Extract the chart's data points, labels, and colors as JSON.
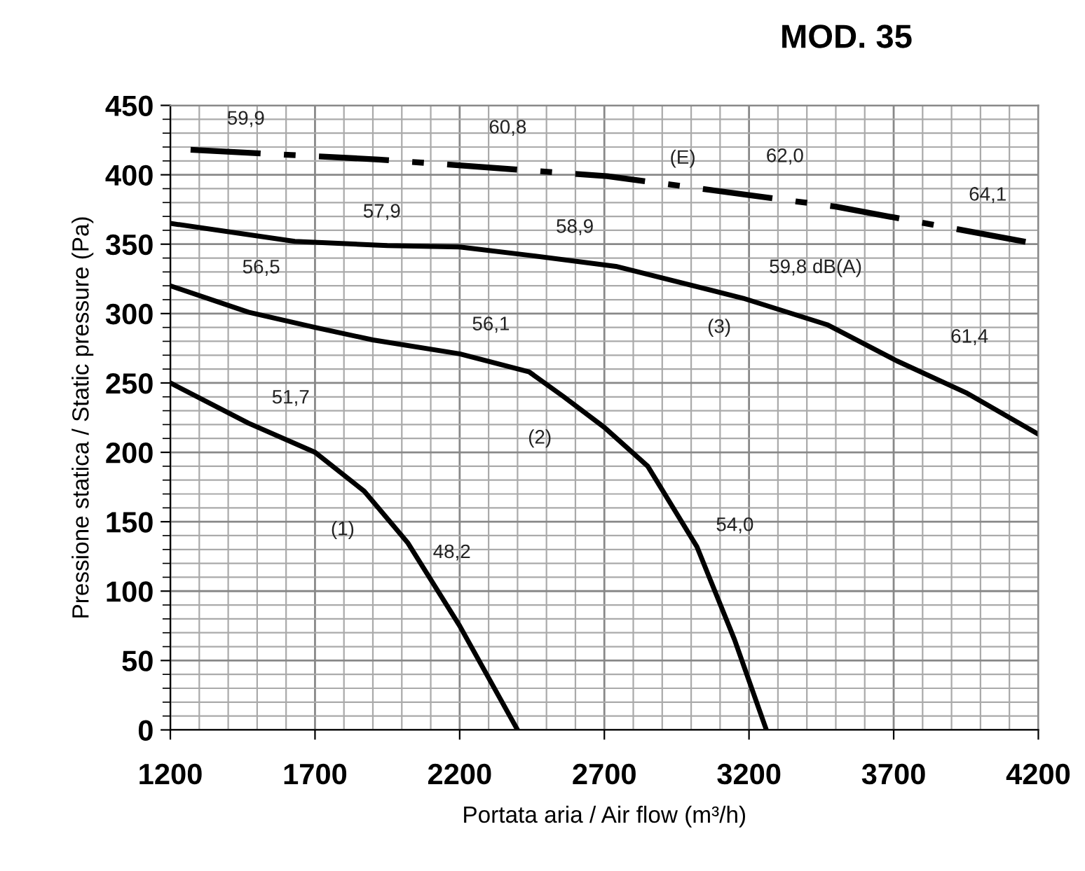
{
  "chart_data": {
    "type": "line",
    "title": "MOD. 35",
    "xlabel": "Portata aria / Air flow (m³/h)",
    "ylabel": "Pressione statica / Static pressure (Pa)",
    "xlim": [
      1200,
      4200
    ],
    "xticks": [
      1200,
      1700,
      2200,
      2700,
      3200,
      3700,
      4200
    ],
    "ylim": [
      0,
      450
    ],
    "yticks": [
      0,
      50,
      100,
      150,
      200,
      250,
      300,
      350,
      400,
      450
    ],
    "grid": true,
    "marker": "none",
    "series": [
      {
        "color": "#000000",
        "line_style": "solid",
        "x": [
          1200,
          1470,
          1700,
          1870,
          2020,
          2200,
          2400
        ],
        "values": [
          250,
          221,
          200,
          172,
          135,
          75,
          0
        ]
      },
      {
        "color": "#000000",
        "line_style": "solid",
        "x": [
          1200,
          1470,
          1700,
          1900,
          2200,
          2440,
          2560,
          2700,
          2850,
          3020,
          3150,
          3260
        ],
        "values": [
          320,
          301,
          290,
          281,
          271,
          258,
          240,
          218,
          190,
          132,
          65,
          0
        ]
      },
      {
        "color": "#000000",
        "line_style": "solid",
        "x": [
          1200,
          1630,
          1950,
          2200,
          2440,
          2740,
          3180,
          3470,
          3710,
          3950,
          4200
        ],
        "values": [
          365,
          352,
          349,
          348,
          342,
          334,
          311,
          292,
          266,
          243,
          213
        ]
      },
      {
        "color": "#000000",
        "line_style": "dashed",
        "x": [
          1270,
          1920,
          2710,
          3500,
          4200
        ],
        "values": [
          418,
          411,
          399,
          377,
          350
        ]
      }
    ],
    "annotations": [
      {
        "text": "59,9",
        "x": 1461,
        "y": 416
      },
      {
        "text": "60,8",
        "x": 2366,
        "y": 404
      },
      {
        "text": "(E)",
        "x": 2971,
        "y": 392
      },
      {
        "text": "62,0",
        "x": 3324,
        "y": 382
      },
      {
        "text": "64,1",
        "x": 4025,
        "y": 357
      },
      {
        "text": "57,9",
        "x": 1931,
        "y": 349
      },
      {
        "text": "58,9",
        "x": 2598,
        "y": 338
      },
      {
        "text": "59,8 dB(A)",
        "x": 3430,
        "y": 295
      },
      {
        "text": "(3)",
        "x": 3097,
        "y": 315
      },
      {
        "text": "61,4",
        "x": 3962,
        "y": 242
      },
      {
        "text": "56,5",
        "x": 1514,
        "y": 299
      },
      {
        "text": "56,1",
        "x": 2308,
        "y": 265
      },
      {
        "text": "(2)",
        "x": 2477,
        "y": 252
      },
      {
        "text": "51,7",
        "x": 1616,
        "y": 208
      },
      {
        "text": "(1)",
        "x": 1984,
        "y": 144
      },
      {
        "text": "48,2",
        "x": 2173,
        "y": 84
      },
      {
        "text": "54,0",
        "x": 2976,
        "y": 147
      }
    ]
  }
}
